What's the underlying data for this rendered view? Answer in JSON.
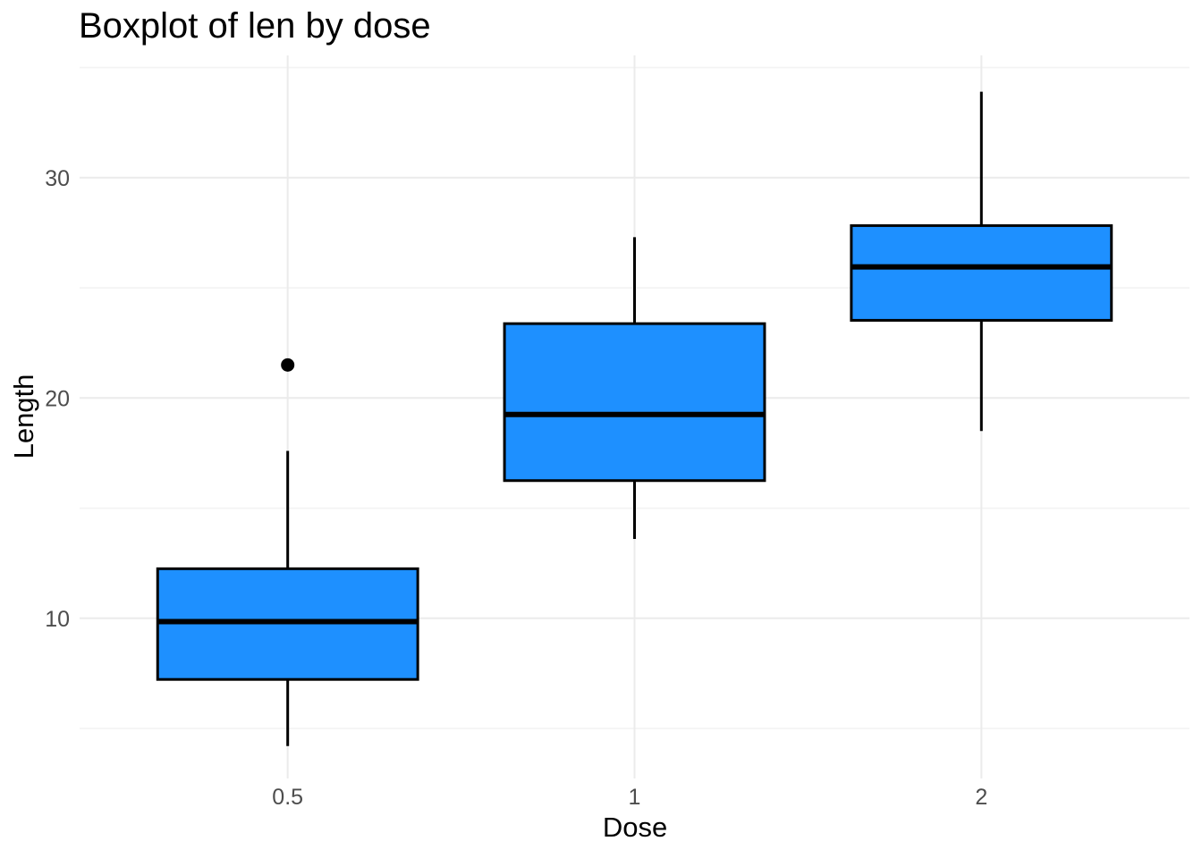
{
  "chart_data": {
    "type": "boxplot",
    "title": "Boxplot of len by dose",
    "xlabel": "Dose",
    "ylabel": "Length",
    "categories": [
      "0.5",
      "1",
      "2"
    ],
    "series": [
      {
        "category": "0.5",
        "whisker_low": 4.2,
        "q1": 7.225,
        "median": 9.85,
        "q3": 12.25,
        "whisker_high": 17.6,
        "outliers": [
          21.5
        ]
      },
      {
        "category": "1",
        "whisker_low": 13.6,
        "q1": 16.25,
        "median": 19.25,
        "q3": 23.375,
        "whisker_high": 27.3,
        "outliers": []
      },
      {
        "category": "2",
        "whisker_low": 18.5,
        "q1": 23.525,
        "median": 25.95,
        "q3": 27.825,
        "whisker_high": 33.9,
        "outliers": []
      }
    ],
    "ylim": [
      2.73,
      35.55
    ],
    "yticks_major": [
      10,
      20,
      30
    ],
    "yticks_minor": [
      5,
      15,
      25,
      35
    ],
    "grid": "horizontal major+minor lines, vertical major line at each category",
    "legend": "none",
    "box_width_fraction": 0.75,
    "colors": {
      "box_fill": "#1E90FF",
      "box_border": "#000000",
      "median_line": "#000000",
      "whisker": "#000000",
      "outlier": "#000000",
      "grid_major": "#EBEBEB",
      "grid_minor": "#F3F3F3",
      "tick_label": "#4D4D4D",
      "axis_title": "#000000",
      "title": "#000000",
      "background": "#FFFFFF"
    }
  }
}
